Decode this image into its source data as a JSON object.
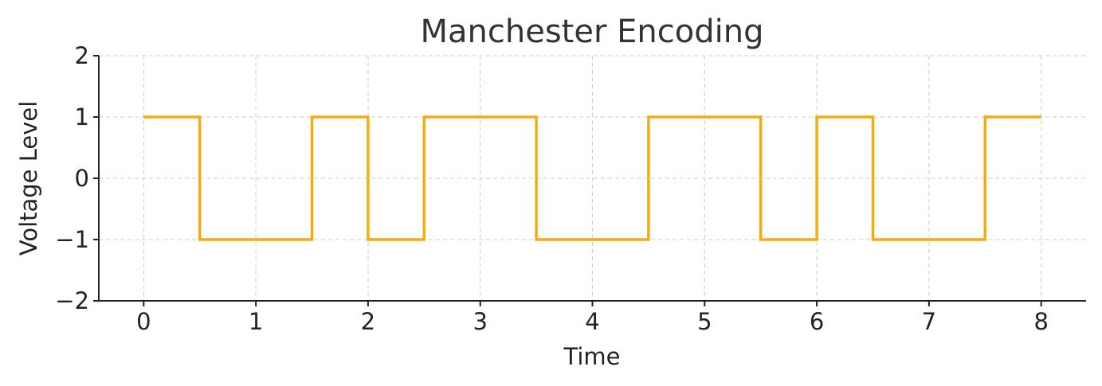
{
  "chart_data": {
    "type": "line",
    "step": "post",
    "title": "Manchester Encoding",
    "xlabel": "Time",
    "ylabel": "Voltage Level",
    "xlim": [
      -0.4,
      8.4
    ],
    "ylim": [
      -2,
      2
    ],
    "xticks": [
      0,
      1,
      2,
      3,
      4,
      5,
      6,
      7,
      8
    ],
    "xtick_labels": [
      "0",
      "1",
      "2",
      "3",
      "4",
      "5",
      "6",
      "7",
      "8"
    ],
    "yticks": [
      2,
      1,
      0,
      -1,
      -2
    ],
    "ytick_labels": [
      "2",
      "1",
      "0",
      "−1",
      "−2"
    ],
    "grid": true,
    "series": [
      {
        "color": "#F5AC0F",
        "x": [
          0,
          0.5,
          1,
          1.5,
          2,
          2.5,
          3,
          3.5,
          4,
          4.5,
          5,
          5.5,
          6,
          6.5,
          7,
          7.5,
          8
        ],
        "y": [
          1,
          -1,
          -1,
          1,
          -1,
          1,
          1,
          -1,
          -1,
          1,
          1,
          -1,
          1,
          -1,
          -1,
          1,
          1
        ]
      }
    ]
  }
}
